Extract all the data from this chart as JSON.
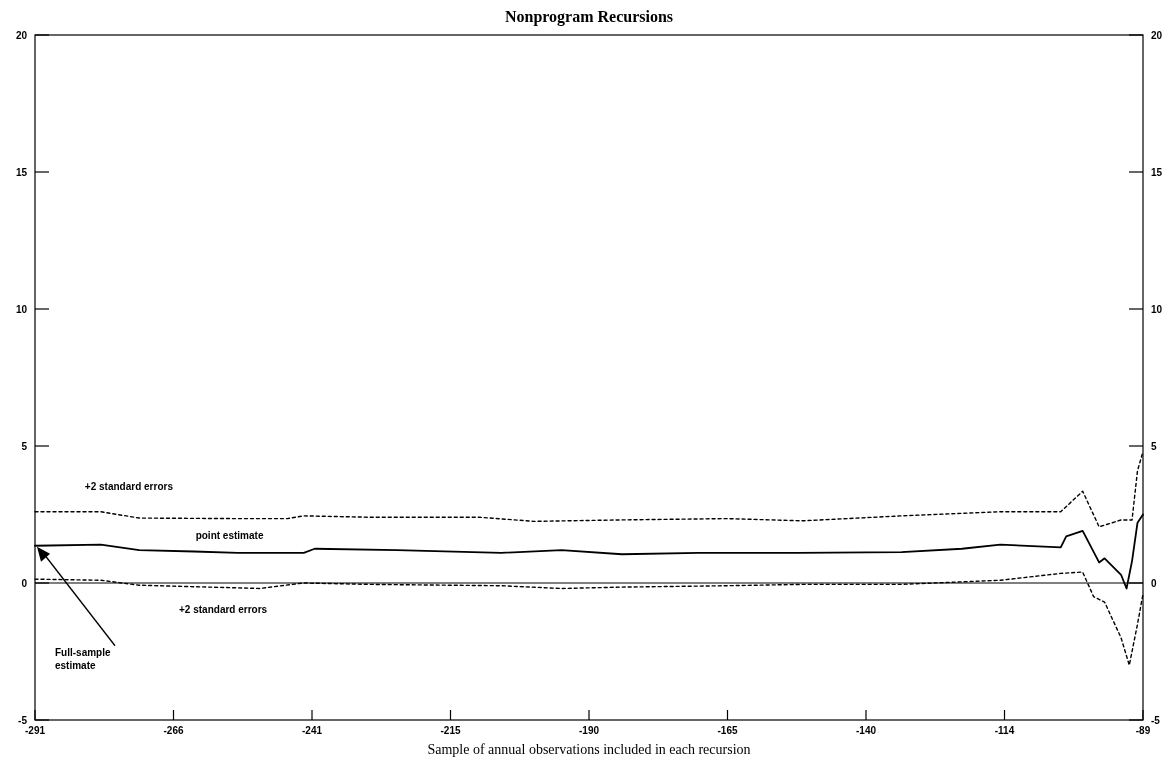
{
  "chart_data": {
    "type": "line",
    "title": "Nonprogram Recursions",
    "xlabel": "Sample of annual observations included in each recursion",
    "xlim": [
      -291,
      -89
    ],
    "xticks": [
      {
        "value": -291,
        "label": "-291"
      },
      {
        "value": -265.75,
        "label": "-266"
      },
      {
        "value": -240.5,
        "label": "-241"
      },
      {
        "value": -215.25,
        "label": "-215"
      },
      {
        "value": -190,
        "label": "-190"
      },
      {
        "value": -164.75,
        "label": "-165"
      },
      {
        "value": -139.5,
        "label": "-140"
      },
      {
        "value": -114.25,
        "label": "-114"
      },
      {
        "value": -89,
        "label": "-89"
      }
    ],
    "ylim": [
      -5,
      20
    ],
    "yticks": [
      -5,
      0,
      5,
      10,
      15,
      20
    ],
    "y2lim": [
      -5,
      20
    ],
    "y2ticks": [
      -5,
      0,
      5,
      10,
      15,
      20
    ],
    "grid": false,
    "ref_lines": [
      {
        "axis": "y",
        "value": 0,
        "color": "#000000",
        "line_style": "solid"
      }
    ],
    "annotations": [
      "Full-sample estimate"
    ],
    "series": [
      {
        "name": "+2 standard errors",
        "color": "#000000",
        "line_style": "dotted",
        "x": [
          -291,
          -279,
          -272,
          -254,
          -245,
          -242,
          -230,
          -210,
          -200,
          -185,
          -165,
          -151,
          -133,
          -115,
          -104,
          -100,
          -97,
          -93,
          -91,
          -90,
          -89
        ],
        "values": [
          2.6,
          2.6,
          2.37,
          2.35,
          2.35,
          2.45,
          2.4,
          2.4,
          2.25,
          2.3,
          2.35,
          2.27,
          2.45,
          2.6,
          2.6,
          3.35,
          2.05,
          2.3,
          2.3,
          4.1,
          4.8
        ]
      },
      {
        "name": "point estimate",
        "color": "#000000",
        "line_style": "solid",
        "x": [
          -291,
          -279,
          -272,
          -262,
          -254,
          -242,
          -240,
          -225,
          -206,
          -195,
          -184,
          -170,
          -152,
          -133,
          -122,
          -115,
          -104,
          -103,
          -100,
          -97,
          -96,
          -93,
          -92,
          -91,
          -90,
          -89
        ],
        "values": [
          1.36,
          1.4,
          1.2,
          1.15,
          1.1,
          1.1,
          1.25,
          1.2,
          1.1,
          1.2,
          1.05,
          1.1,
          1.1,
          1.13,
          1.25,
          1.4,
          1.3,
          1.7,
          1.9,
          0.75,
          0.9,
          0.3,
          -0.2,
          0.8,
          2.2,
          2.5
        ]
      },
      {
        "name": "+2 standard errors",
        "color": "#000000",
        "line_style": "dotted",
        "x": [
          -291,
          -279,
          -272,
          -250,
          -242,
          -230,
          -206,
          -195,
          -184,
          -165,
          -151,
          -133,
          -115,
          -104,
          -100,
          -98,
          -96,
          -93,
          -91.5,
          -90,
          -89
        ],
        "values": [
          0.14,
          0.1,
          -0.08,
          -0.2,
          0.0,
          -0.05,
          -0.1,
          -0.2,
          -0.15,
          -0.1,
          -0.05,
          -0.05,
          0.1,
          0.35,
          0.4,
          -0.5,
          -0.7,
          -2.0,
          -3.0,
          -1.5,
          -0.4
        ]
      }
    ]
  }
}
